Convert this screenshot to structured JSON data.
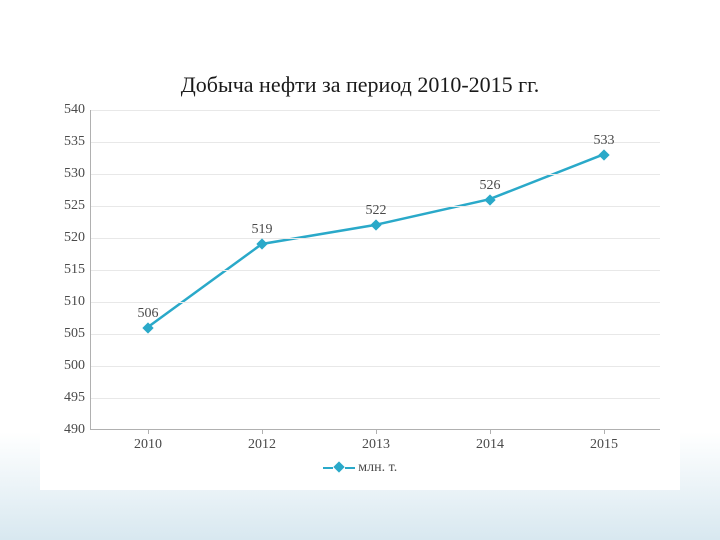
{
  "chart": {
    "type": "line",
    "title": "Добыча нефти за период 2010-2015 гг.",
    "title_fontsize": 22,
    "background_color": "#ffffff",
    "grid_color": "#e8e8e8",
    "axis_color": "#b0b0b0",
    "text_color": "#4a4a4a",
    "series": {
      "name": "млн. т.",
      "color": "#2aa9c9",
      "line_width": 2.5,
      "marker_style": "diamond",
      "marker_size": 8,
      "categories": [
        "2010",
        "2012",
        "2013",
        "2014",
        "2015"
      ],
      "values": [
        506,
        519,
        522,
        526,
        533
      ],
      "show_data_labels": true
    },
    "y_axis": {
      "min": 490,
      "max": 540,
      "tick_step": 5,
      "ticks": [
        490,
        495,
        500,
        505,
        510,
        515,
        520,
        525,
        530,
        535,
        540
      ]
    },
    "x_axis": {
      "categories": [
        "2010",
        "2012",
        "2013",
        "2014",
        "2015"
      ]
    },
    "legend": {
      "position": "bottom",
      "label": "млн. т."
    }
  }
}
